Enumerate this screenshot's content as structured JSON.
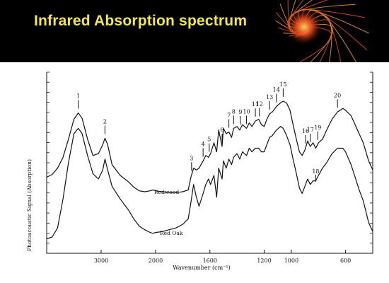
{
  "slide": {
    "title": "Infrared Absorption spectrum",
    "accent_color": "#f2e64b",
    "banner_background": "#000000",
    "decoration_icon": "orange-swirl-graphic"
  },
  "chart_data": {
    "type": "line",
    "xlabel": "Wavenumber (cm⁻¹)",
    "ylabel": "Photoacoustic Signal (Absorption)",
    "x_reversed": true,
    "xlim": [
      4000,
      400
    ],
    "ylim": [
      0,
      1
    ],
    "x_ticks": [
      3000,
      2000,
      1600,
      1200,
      1000,
      600
    ],
    "grid": false,
    "series": [
      {
        "name": "Redwood",
        "x": [
          4000,
          3900,
          3800,
          3700,
          3600,
          3500,
          3420,
          3350,
          3250,
          3150,
          3050,
          2970,
          2930,
          2880,
          2800,
          2650,
          2500,
          2400,
          2300,
          2200,
          2100,
          2050,
          2000,
          1950,
          1900,
          1850,
          1800,
          1760,
          1740,
          1720,
          1700,
          1680,
          1650,
          1630,
          1610,
          1595,
          1570,
          1550,
          1535,
          1510,
          1500,
          1480,
          1460,
          1440,
          1425,
          1400,
          1380,
          1360,
          1330,
          1310,
          1290,
          1265,
          1240,
          1220,
          1200,
          1180,
          1160,
          1140,
          1110,
          1080,
          1060,
          1035,
          1010,
          990,
          960,
          940,
          920,
          900,
          880,
          860,
          840,
          820,
          800,
          770,
          740,
          700,
          660,
          620,
          600,
          560,
          530,
          500,
          470,
          450,
          430,
          400
        ],
        "y": [
          0.42,
          0.435,
          0.47,
          0.53,
          0.63,
          0.74,
          0.775,
          0.745,
          0.63,
          0.54,
          0.55,
          0.6,
          0.635,
          0.6,
          0.49,
          0.43,
          0.395,
          0.365,
          0.345,
          0.34,
          0.345,
          0.35,
          0.345,
          0.34,
          0.335,
          0.335,
          0.34,
          0.35,
          0.42,
          0.47,
          0.46,
          0.47,
          0.51,
          0.54,
          0.53,
          0.55,
          0.61,
          0.56,
          0.68,
          0.59,
          0.69,
          0.66,
          0.67,
          0.64,
          0.69,
          0.7,
          0.68,
          0.71,
          0.69,
          0.72,
          0.7,
          0.73,
          0.74,
          0.71,
          0.7,
          0.74,
          0.77,
          0.78,
          0.81,
          0.83,
          0.84,
          0.83,
          0.79,
          0.72,
          0.62,
          0.56,
          0.54,
          0.57,
          0.62,
          0.59,
          0.61,
          0.58,
          0.61,
          0.63,
          0.68,
          0.74,
          0.78,
          0.8,
          0.79,
          0.76,
          0.71,
          0.66,
          0.61,
          0.56,
          0.51,
          0.46
        ]
      },
      {
        "name": "Red Oak",
        "x": [
          4000,
          3900,
          3800,
          3700,
          3600,
          3500,
          3420,
          3350,
          3250,
          3150,
          3050,
          2970,
          2930,
          2880,
          2800,
          2650,
          2500,
          2400,
          2300,
          2200,
          2100,
          2050,
          2000,
          1950,
          1900,
          1850,
          1800,
          1760,
          1740,
          1720,
          1700,
          1680,
          1650,
          1630,
          1610,
          1595,
          1570,
          1550,
          1535,
          1510,
          1500,
          1480,
          1460,
          1440,
          1425,
          1400,
          1380,
          1360,
          1330,
          1310,
          1290,
          1265,
          1240,
          1220,
          1200,
          1180,
          1160,
          1140,
          1110,
          1080,
          1060,
          1035,
          1010,
          990,
          960,
          940,
          920,
          900,
          880,
          860,
          840,
          820,
          800,
          770,
          740,
          700,
          660,
          620,
          600,
          560,
          530,
          500,
          470,
          450,
          430,
          400
        ],
        "y": [
          0.08,
          0.09,
          0.14,
          0.3,
          0.5,
          0.66,
          0.69,
          0.66,
          0.54,
          0.44,
          0.41,
          0.46,
          0.52,
          0.46,
          0.37,
          0.3,
          0.24,
          0.19,
          0.15,
          0.13,
          0.115,
          0.11,
          0.115,
          0.12,
          0.13,
          0.14,
          0.16,
          0.19,
          0.28,
          0.38,
          0.31,
          0.26,
          0.33,
          0.38,
          0.41,
          0.38,
          0.43,
          0.31,
          0.47,
          0.41,
          0.51,
          0.47,
          0.52,
          0.49,
          0.53,
          0.55,
          0.52,
          0.56,
          0.54,
          0.58,
          0.56,
          0.58,
          0.58,
          0.56,
          0.56,
          0.6,
          0.64,
          0.65,
          0.68,
          0.7,
          0.69,
          0.65,
          0.6,
          0.53,
          0.43,
          0.36,
          0.33,
          0.37,
          0.41,
          0.38,
          0.4,
          0.4,
          0.43,
          0.47,
          0.5,
          0.55,
          0.58,
          0.58,
          0.56,
          0.49,
          0.42,
          0.35,
          0.29,
          0.23,
          0.17,
          0.12
        ]
      }
    ],
    "series_labels": [
      "Redwood",
      "Red Oak"
    ],
    "peak_labels": [
      {
        "label": "1",
        "x": 3420
      },
      {
        "label": "2",
        "x": 2930
      },
      {
        "label": "3",
        "x": 1735
      },
      {
        "label": "4",
        "x": 1650
      },
      {
        "label": "5",
        "x": 1605
      },
      {
        "label": "6",
        "x": 1510
      },
      {
        "label": "7",
        "x": 1460
      },
      {
        "label": "8",
        "x": 1425
      },
      {
        "label": "9",
        "x": 1375
      },
      {
        "label": "10",
        "x": 1330
      },
      {
        "label": "11",
        "x": 1265
      },
      {
        "label": "12",
        "x": 1235
      },
      {
        "label": "13",
        "x": 1160
      },
      {
        "label": "14",
        "x": 1110
      },
      {
        "label": "15",
        "x": 1060
      },
      {
        "label": "16",
        "x": 895
      },
      {
        "label": "17",
        "x": 860
      },
      {
        "label": "18",
        "x": 820
      },
      {
        "label": "19",
        "x": 805
      },
      {
        "label": "20",
        "x": 660
      }
    ]
  }
}
